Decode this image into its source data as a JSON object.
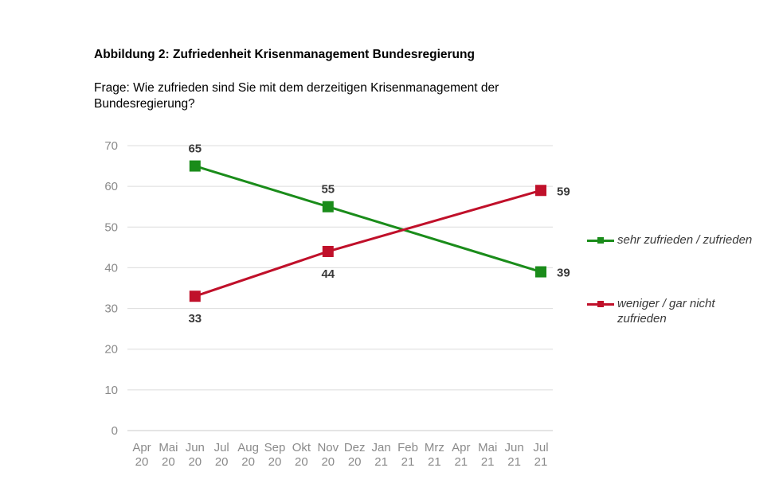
{
  "title": "Abbildung 2: Zufriedenheit Krisenmanagement Bundesregierung",
  "question": "Frage: Wie zufrieden sind Sie mit dem derzeitigen Krisenmanagement der Bundesregierung?",
  "chart_data": {
    "type": "line",
    "categories": [
      [
        "Apr",
        "20"
      ],
      [
        "Mai",
        "20"
      ],
      [
        "Jun",
        "20"
      ],
      [
        "Jul",
        "20"
      ],
      [
        "Aug",
        "20"
      ],
      [
        "Sep",
        "20"
      ],
      [
        "Okt",
        "20"
      ],
      [
        "Nov",
        "20"
      ],
      [
        "Dez",
        "20"
      ],
      [
        "Jan",
        "21"
      ],
      [
        "Feb",
        "21"
      ],
      [
        "Mrz",
        "21"
      ],
      [
        "Apr",
        "21"
      ],
      [
        "Mai",
        "21"
      ],
      [
        "Jun",
        "21"
      ],
      [
        "Jul",
        "21"
      ]
    ],
    "ylim": [
      0,
      70
    ],
    "yticks": [
      0,
      10,
      20,
      30,
      40,
      50,
      60,
      70
    ],
    "grid": true,
    "legend_position": "right",
    "series": [
      {
        "name": "sehr zufrieden / zufrieden",
        "color": "#1a8c1a",
        "points": [
          {
            "x": "Jun 20",
            "y": 65
          },
          {
            "x": "Nov 20",
            "y": 55
          },
          {
            "x": "Jul 21",
            "y": 39
          }
        ]
      },
      {
        "name": "weniger / gar nicht zufrieden",
        "color": "#c0102a",
        "points": [
          {
            "x": "Jun 20",
            "y": 33
          },
          {
            "x": "Nov 20",
            "y": 44
          },
          {
            "x": "Jul 21",
            "y": 59
          }
        ]
      }
    ]
  }
}
